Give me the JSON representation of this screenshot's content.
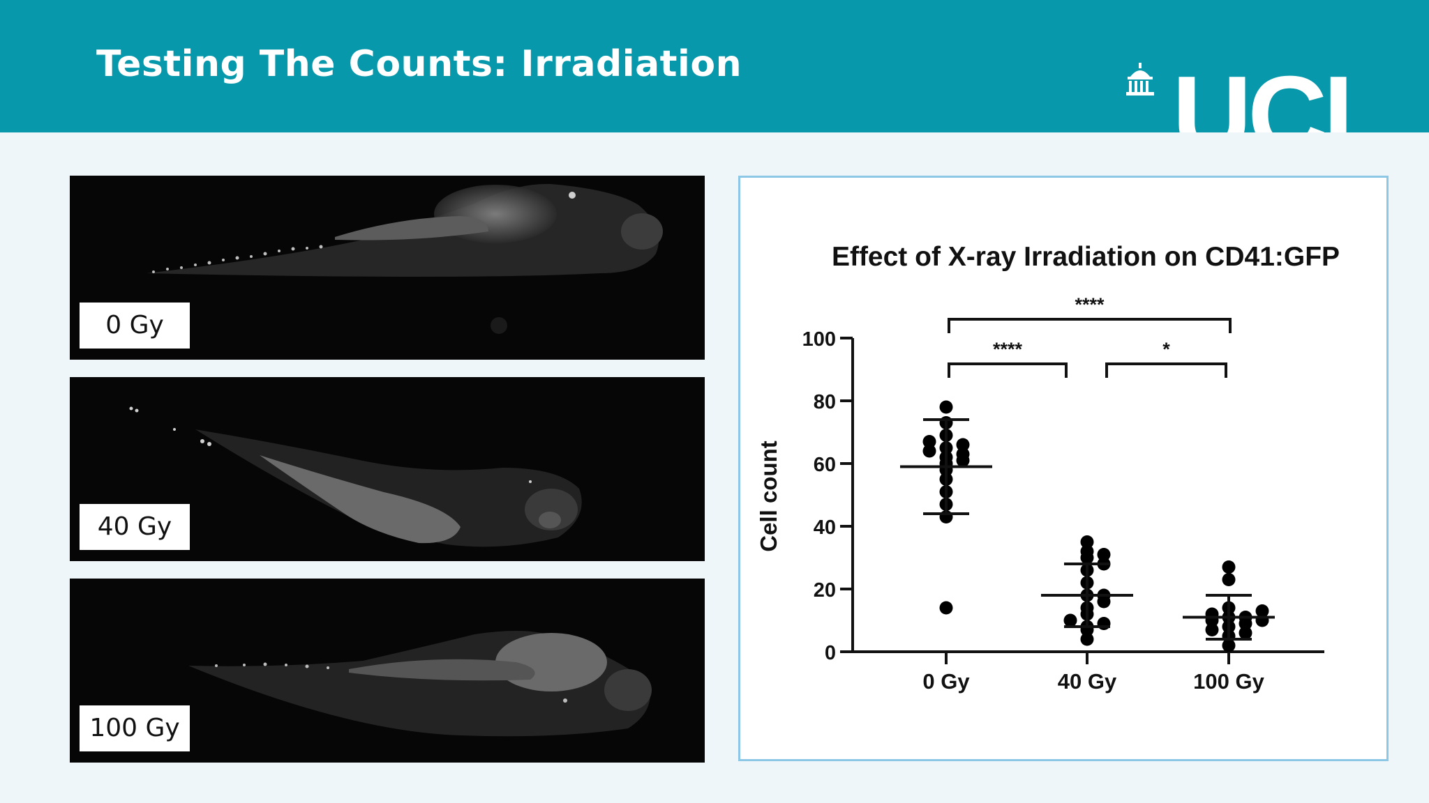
{
  "header": {
    "title": "Testing The Counts: Irradiation",
    "logo_text": "UCL"
  },
  "panels": [
    {
      "label": "0 Gy"
    },
    {
      "label": "40 Gy"
    },
    {
      "label": "100 Gy"
    }
  ],
  "colors": {
    "header": "#0898ab",
    "background": "#eef6fa",
    "chart_border": "#8cc8e6"
  },
  "chart_data": {
    "type": "scatter",
    "title": "Effect of X-ray Irradiation on CD41:GFP",
    "xlabel": "",
    "ylabel": "Cell count",
    "ylim": [
      0,
      100
    ],
    "yticks": [
      0,
      20,
      40,
      60,
      80,
      100
    ],
    "categories": [
      "0 Gy",
      "40 Gy",
      "100 Gy"
    ],
    "groups": [
      {
        "category": "0 Gy",
        "mean": 59,
        "sd_low": 44,
        "sd_high": 74,
        "points": [
          14,
          43,
          47,
          51,
          55,
          58,
          60,
          61,
          62,
          63,
          64,
          65,
          66,
          67,
          69,
          73,
          78
        ]
      },
      {
        "category": "40 Gy",
        "mean": 18,
        "sd_low": 8,
        "sd_high": 28,
        "points": [
          4,
          7,
          8,
          9,
          10,
          12,
          14,
          16,
          18,
          18,
          22,
          26,
          28,
          30,
          31,
          32,
          35
        ]
      },
      {
        "category": "100 Gy",
        "mean": 11,
        "sd_low": 4,
        "sd_high": 18,
        "points": [
          2,
          5,
          6,
          7,
          8,
          9,
          10,
          10,
          11,
          11,
          12,
          13,
          14,
          23,
          27
        ]
      }
    ],
    "significance": [
      {
        "from": "0 Gy",
        "to": "100 Gy",
        "label": "****"
      },
      {
        "from": "0 Gy",
        "to": "40 Gy",
        "label": "****"
      },
      {
        "from": "40 Gy",
        "to": "100 Gy",
        "label": "*"
      }
    ],
    "legend": "none",
    "grid": false
  }
}
